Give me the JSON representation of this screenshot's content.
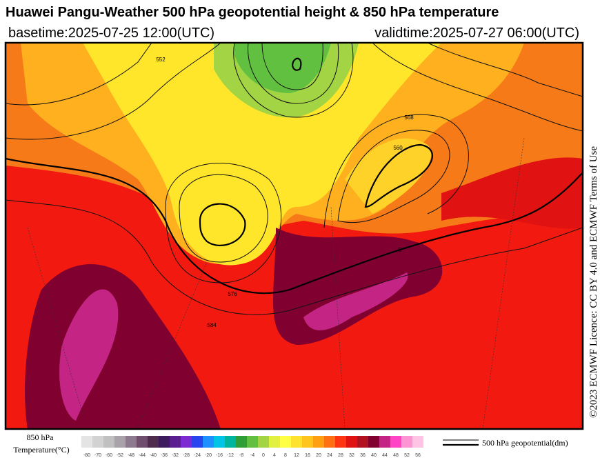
{
  "header": {
    "title": "Huawei Pangu-Weather 500 hPa geopotential height & 850 hPa temperature",
    "basetime": "basetime:2025-07-25 12:00(UTC)",
    "validtime": "validtime:2025-07-27 06:00(UTC)"
  },
  "copyright": "©2023 ECMWF Licence: CC BY 4.0 and ECMWF Terms of Use",
  "map_labels": [
    "552",
    "576",
    "584",
    "568",
    "560",
    "5"
  ],
  "colorbar": {
    "title_line1": "850 hPa",
    "title_line2": "Temperature(°C)",
    "ticks": [
      -80,
      -70,
      -60,
      -52,
      -48,
      -44,
      -40,
      -36,
      -32,
      -28,
      -24,
      -20,
      -16,
      -12,
      -8,
      -4,
      0,
      4,
      8,
      12,
      16,
      20,
      24,
      28,
      32,
      36,
      40,
      44,
      48,
      52,
      56
    ],
    "colors": [
      "#e4e4e4",
      "#d2d2d2",
      "#c0c0c0",
      "#aaa2aa",
      "#8e7a8e",
      "#6e506e",
      "#4e2c4e",
      "#3c1c5c",
      "#5a1e90",
      "#7c2ad2",
      "#2a44f0",
      "#1e90ff",
      "#00c4e6",
      "#00b4a0",
      "#2e9e36",
      "#62c040",
      "#a2d444",
      "#e2f040",
      "#ffff44",
      "#ffe22e",
      "#ffc41e",
      "#ffa012",
      "#ff7012",
      "#ff3412",
      "#e01212",
      "#b01222",
      "#800030",
      "#c42484",
      "#ff44c4",
      "#ff94d4",
      "#ffc4e4"
    ]
  },
  "legend": {
    "label": "500 hPa geopotential(dm)"
  }
}
